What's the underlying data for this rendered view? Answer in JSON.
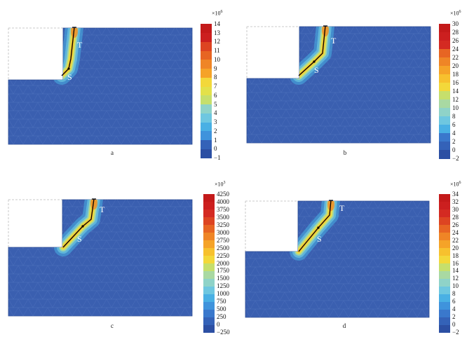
{
  "panels": [
    {
      "id": "a",
      "caption": "a",
      "label_T": "T",
      "label_S": "S",
      "colorbar": {
        "exponent": "×10",
        "exp_power": "6",
        "ticks": [
          "14",
          "13",
          "12",
          "11",
          "10",
          "9",
          "8",
          "7",
          "6",
          "5",
          "4",
          "3",
          "2",
          "1",
          "0",
          "−1"
        ]
      }
    },
    {
      "id": "b",
      "caption": "b",
      "label_T": "T",
      "label_S": "S",
      "colorbar": {
        "exponent": "×10",
        "exp_power": "6",
        "ticks": [
          "30",
          "28",
          "26",
          "24",
          "22",
          "20",
          "18",
          "16",
          "14",
          "12",
          "10",
          "8",
          "6",
          "4",
          "2",
          "0",
          "−2"
        ]
      }
    },
    {
      "id": "c",
      "caption": "c",
      "label_T": "T",
      "label_S": "S",
      "colorbar": {
        "exponent": "×10",
        "exp_power": "3",
        "ticks": [
          "4250",
          "4000",
          "3750",
          "3500",
          "3250",
          "3000",
          "2750",
          "2500",
          "2250",
          "2000",
          "1750",
          "1500",
          "1250",
          "1000",
          "750",
          "500",
          "250",
          "0",
          "−250"
        ]
      }
    },
    {
      "id": "d",
      "caption": "d",
      "label_T": "T",
      "label_S": "S",
      "colorbar": {
        "exponent": "×10",
        "exp_power": "6",
        "ticks": [
          "34",
          "32",
          "30",
          "28",
          "26",
          "24",
          "22",
          "20",
          "18",
          "16",
          "14",
          "12",
          "10",
          "8",
          "6",
          "4",
          "2",
          "0",
          "−2"
        ]
      }
    }
  ],
  "colors": {
    "field": "#3a5fb0",
    "mesh": "#5b7ec4",
    "crack_line": "#000000",
    "scale": [
      "#2c4fa3",
      "#3462b8",
      "#3a78cc",
      "#3f93dc",
      "#49b0e4",
      "#6ec7e0",
      "#8fd3c8",
      "#a9d9a2",
      "#c6df6c",
      "#e3e14a",
      "#f3d83a",
      "#f7c12e",
      "#f5a328",
      "#ef8526",
      "#e76523",
      "#dd4422",
      "#d42a22",
      "#cc1f1f",
      "#c41a1a"
    ]
  }
}
